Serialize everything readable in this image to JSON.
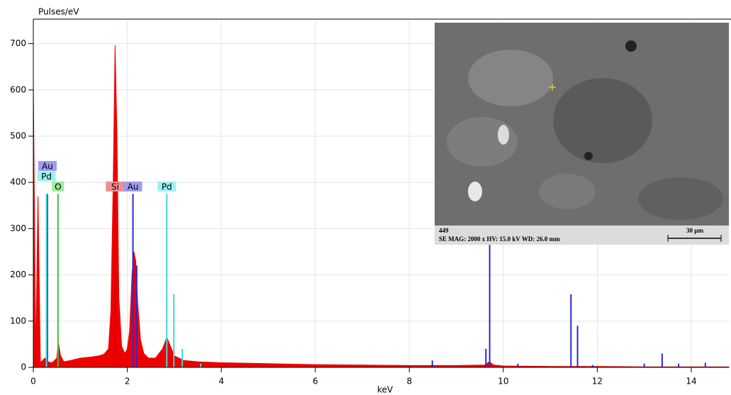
{
  "chart_data": {
    "type": "area",
    "y_label": "Pulses/eV",
    "x_label": "keV",
    "xlim": [
      0,
      14.8
    ],
    "ylim": [
      0,
      750
    ],
    "xticks": [
      0,
      2,
      4,
      6,
      8,
      10,
      12,
      14
    ],
    "yticks": [
      0,
      100,
      200,
      300,
      400,
      500,
      600,
      700
    ],
    "grid": true,
    "color": "#ee0000",
    "x": [
      0,
      0.05,
      0.1,
      0.15,
      0.2,
      0.25,
      0.3,
      0.4,
      0.5,
      0.53,
      0.58,
      0.65,
      0.8,
      1.0,
      1.2,
      1.4,
      1.5,
      1.6,
      1.65,
      1.7,
      1.74,
      1.78,
      1.82,
      1.88,
      1.95,
      2.0,
      2.05,
      2.1,
      2.14,
      2.18,
      2.22,
      2.28,
      2.35,
      2.45,
      2.6,
      2.75,
      2.84,
      2.92,
      3.0,
      3.2,
      3.5,
      4,
      5,
      6,
      7,
      8,
      9,
      9.6,
      9.7,
      9.8,
      10,
      11,
      12,
      13,
      14,
      14.8
    ],
    "values": [
      620,
      20,
      370,
      10,
      15,
      20,
      12,
      10,
      20,
      55,
      25,
      12,
      15,
      20,
      22,
      25,
      28,
      40,
      120,
      400,
      697,
      500,
      150,
      45,
      30,
      40,
      80,
      200,
      250,
      230,
      140,
      60,
      30,
      20,
      20,
      40,
      65,
      45,
      25,
      15,
      12,
      10,
      8,
      6,
      5,
      4,
      4,
      5,
      12,
      5,
      3,
      2,
      2,
      1,
      1,
      1
    ],
    "element_lines": [
      {
        "name": "Au",
        "color": "#2a2ad8",
        "label_color": "#9c9cf0",
        "x": [
          0.3,
          2.12,
          2.2,
          8.49,
          9.63,
          9.71,
          10.31,
          11.44,
          11.58,
          11.9,
          13.0,
          13.38,
          13.73,
          14.3
        ],
        "values": [
          375,
          375,
          220,
          15,
          40,
          265,
          8,
          158,
          90,
          5,
          8,
          30,
          8,
          10
        ]
      },
      {
        "name": "Pd",
        "color": "#40d8d8",
        "label_color": "#9cf0f0",
        "x": [
          0.28,
          2.84,
          2.99,
          3.17,
          3.56
        ],
        "values": [
          375,
          375,
          158,
          40,
          8
        ]
      },
      {
        "name": "O",
        "color": "#40c040",
        "label_color": "#9cec9c",
        "x": [
          0.525
        ],
        "values": [
          375
        ]
      },
      {
        "name": "Si",
        "color": "#e00000",
        "label_color": "#f09090",
        "x": [
          1.74
        ],
        "values": [
          375
        ]
      }
    ],
    "labels": [
      {
        "text": "O",
        "x": 0.525
      },
      {
        "text": "Si",
        "x": 1.74
      },
      {
        "text": "Au",
        "x": 2.12
      },
      {
        "text": "Pd",
        "x": 2.84
      },
      {
        "text": "Pd",
        "x": 0.28
      },
      {
        "text": "Au",
        "x": 0.3
      }
    ],
    "inset": {
      "id": "449",
      "caption": "SE MAG: 2000 x HV: 15.0 kV WD: 26.0 mm",
      "scale": "30 µm"
    }
  }
}
